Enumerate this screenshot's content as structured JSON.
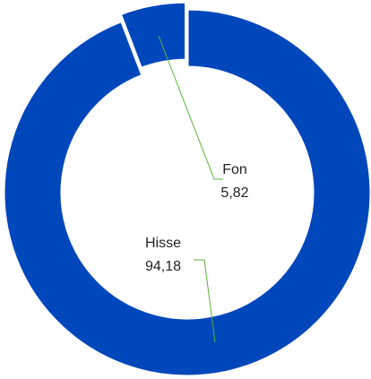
{
  "chart_data": {
    "type": "pie",
    "donut": true,
    "categories": [
      "Hisse",
      "Fon"
    ],
    "values": [
      94.18,
      5.82
    ],
    "value_labels": [
      "94,18",
      "5,82"
    ],
    "color": "#0047bb"
  }
}
